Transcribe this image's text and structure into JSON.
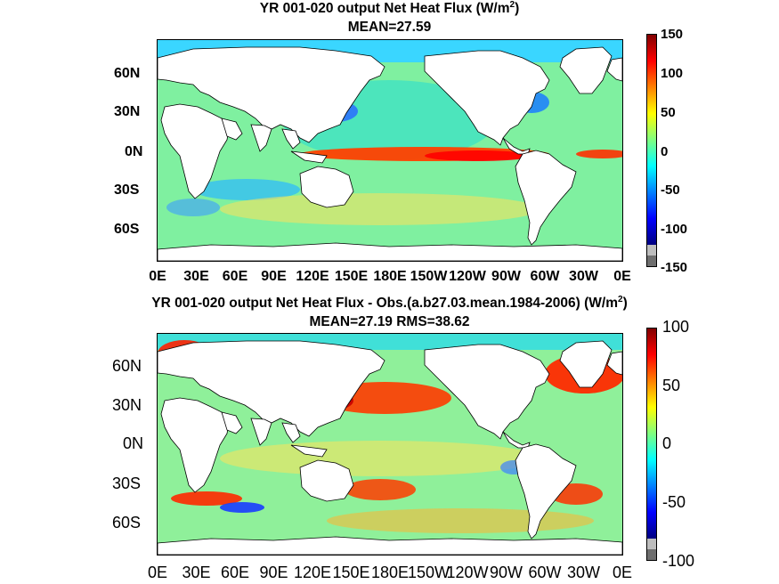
{
  "chart_data": [
    {
      "type": "heatmap",
      "title_prefix": "YR 001-020 output  Net Heat Flux (W/m",
      "title_suffix": ")",
      "title_sup": "2",
      "subtitle": "MEAN=27.59",
      "y_ticks": [
        "60N",
        "30N",
        "0N",
        "30S",
        "60S"
      ],
      "x_ticks": [
        "0E",
        "30E",
        "60E",
        "90E",
        "120E",
        "150E",
        "180E",
        "150W",
        "120W",
        "90W",
        "60W",
        "30W",
        "0E"
      ],
      "colorbar": {
        "range": [
          -150,
          150
        ],
        "ticks": [
          "150",
          "100",
          "50",
          "0",
          "-50",
          "-100",
          "-150"
        ],
        "overflow_color": "#bdbdbd",
        "underflow_color": "#6e6e6e"
      },
      "field_description_values": {
        "equatorial_pacific": 140,
        "western_boundary_currents": -80,
        "southern_ocean": 30
      }
    },
    {
      "type": "heatmap",
      "title_prefix": "YR 001-020 output  Net Heat Flux - Obs.(a.b27.03.mean.1984-2006) (W/m",
      "title_suffix": ")",
      "title_sup": "2",
      "subtitle": "MEAN=27.19 RMS=38.62",
      "y_ticks": [
        "60N",
        "30N",
        "0N",
        "30S",
        "60S"
      ],
      "x_ticks": [
        "0E",
        "30E",
        "60E",
        "90E",
        "120E",
        "150E",
        "180E",
        "150W",
        "120W",
        "90W",
        "60W",
        "30W",
        "0E"
      ],
      "colorbar": {
        "range": [
          -100,
          100
        ],
        "ticks": [
          "100",
          "50",
          "0",
          "-50",
          "-100"
        ],
        "overflow_color": "#bdbdbd",
        "underflow_color": "#6e6e6e"
      },
      "field_description_values": {
        "kuroshio": 100,
        "gulf_stream": 100,
        "southern_ocean": 60
      }
    }
  ]
}
